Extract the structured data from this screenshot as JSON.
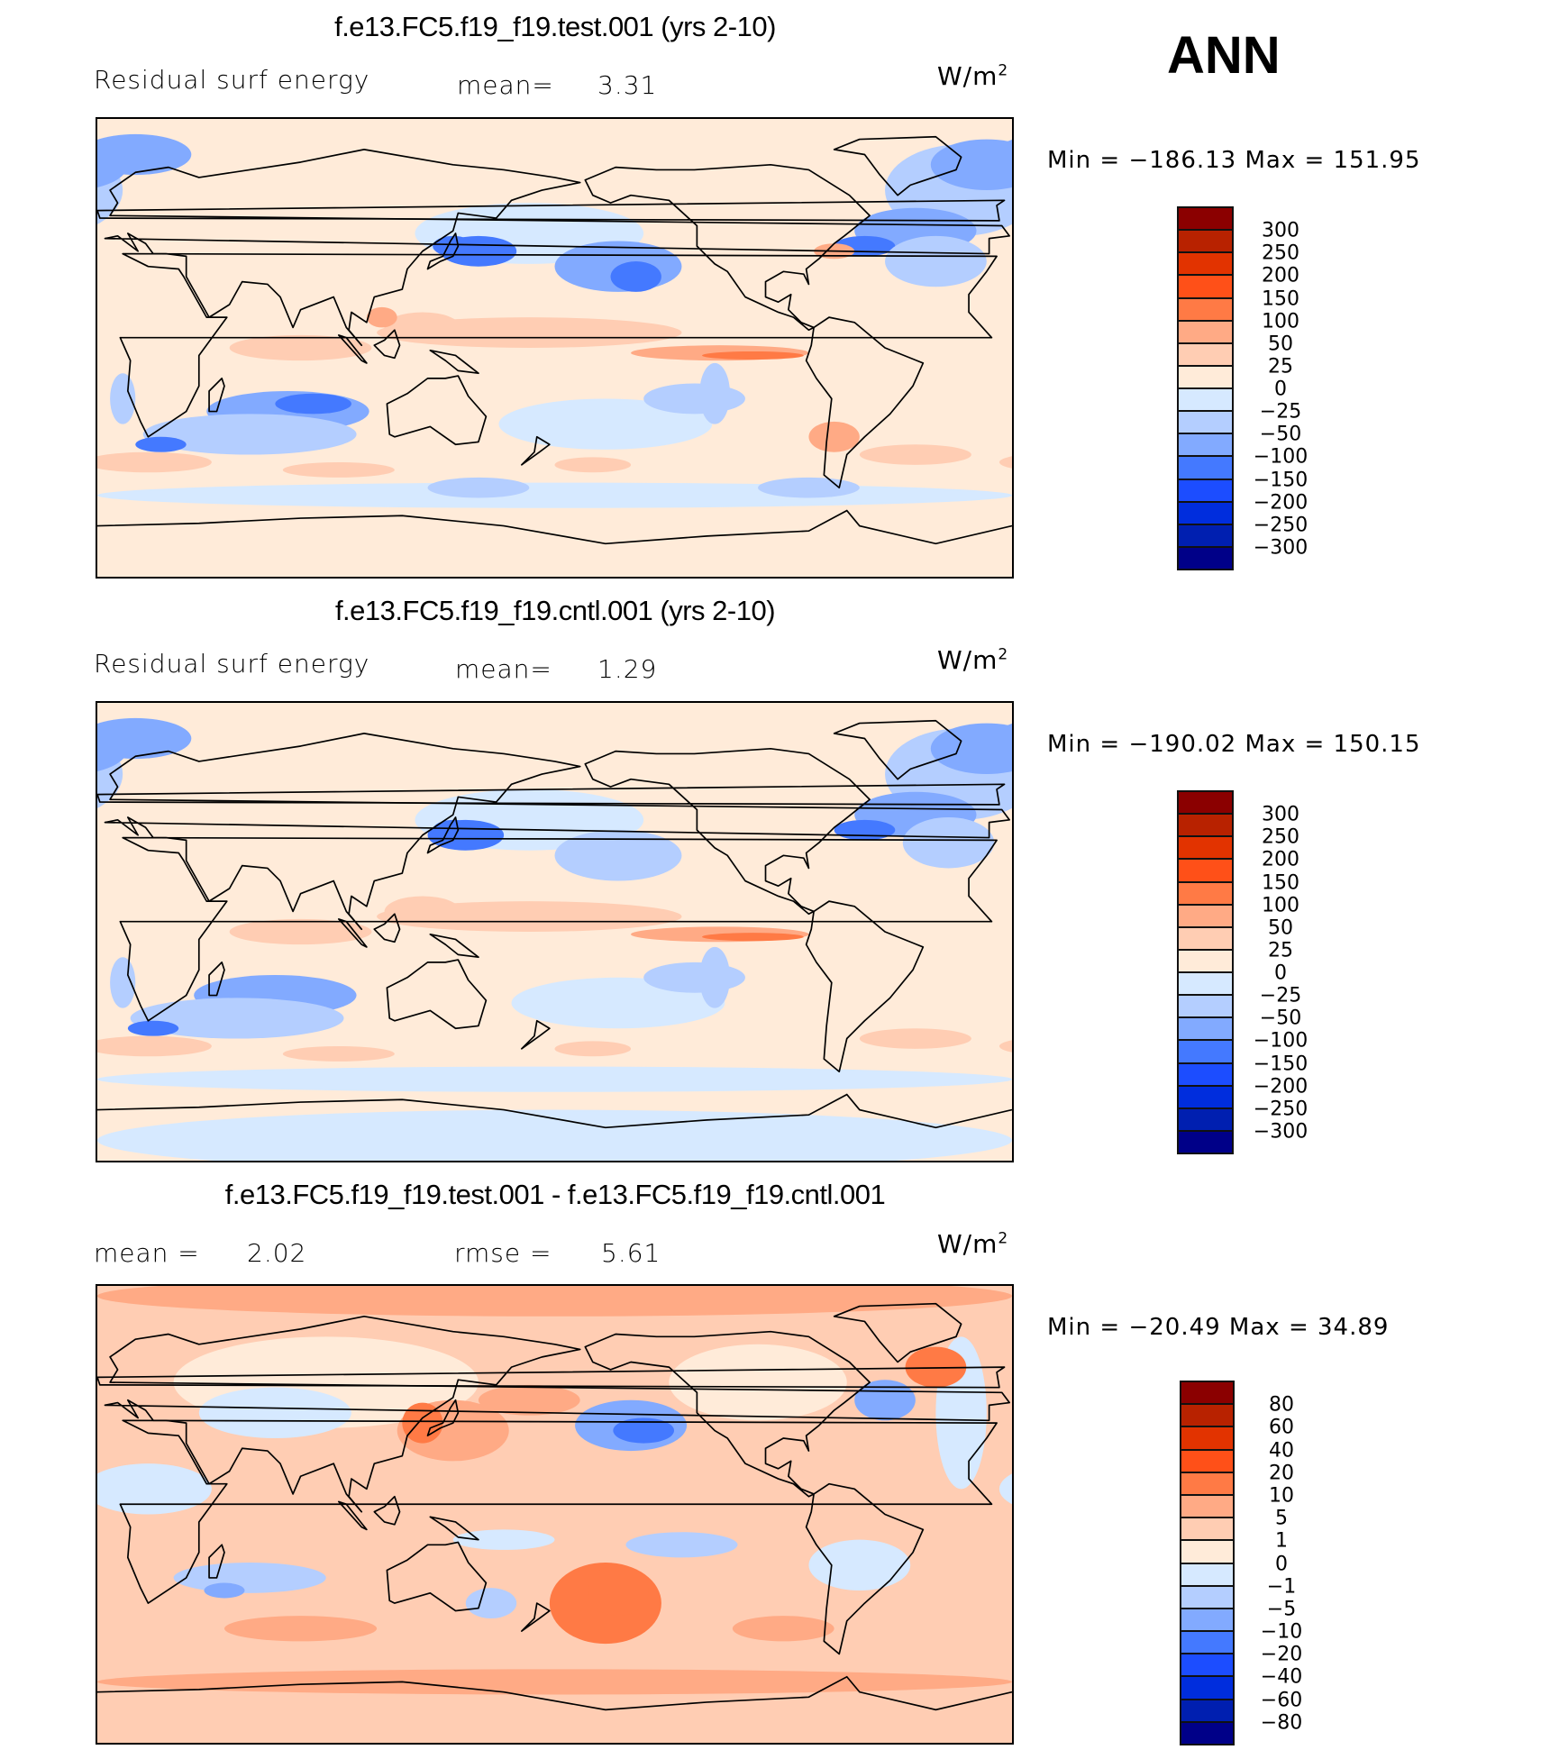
{
  "season": "ANN",
  "panels": [
    {
      "title": "f.e13.FC5.f19_f19.test.001 (yrs 2-10)",
      "variable": "Residual surf energy",
      "mean_label": "mean=",
      "mean": "3.31",
      "units": "W/m",
      "units_exp": "2",
      "minmax": "Min = −186.13 Max = 151.95"
    },
    {
      "title": "f.e13.FC5.f19_f19.cntl.001 (yrs 2-10)",
      "variable": "Residual surf energy",
      "mean_label": "mean=",
      "mean": "1.29",
      "units": "W/m",
      "units_exp": "2",
      "minmax": "Min = −190.02 Max = 150.15"
    },
    {
      "title": "f.e13.FC5.f19_f19.test.001 - f.e13.FC5.f19_f19.cntl.001",
      "mean_label": "mean =",
      "mean": "2.02",
      "rmse_label": "rmse =",
      "rmse": "5.61",
      "units": "W/m",
      "units_exp": "2",
      "minmax": "Min = −20.49 Max =  34.89"
    }
  ],
  "chart_data": {
    "type": "heatmap",
    "colorbars": [
      {
        "levels": [
          "300",
          "250",
          "200",
          "150",
          "100",
          "50",
          "25",
          "0",
          "−25",
          "−50",
          "−100",
          "−150",
          "−200",
          "−250",
          "−300"
        ]
      },
      {
        "levels": [
          "300",
          "250",
          "200",
          "150",
          "100",
          "50",
          "25",
          "0",
          "−25",
          "−50",
          "−100",
          "−150",
          "−200",
          "−250",
          "−300"
        ]
      },
      {
        "levels": [
          "80",
          "60",
          "40",
          "20",
          "10",
          "5",
          "1",
          "0",
          "−1",
          "−5",
          "−10",
          "−20",
          "−40",
          "−60",
          "−80"
        ]
      }
    ],
    "colors": [
      "#8b0000",
      "#b82200",
      "#e23300",
      "#ff5018",
      "#ff7a45",
      "#ffaa85",
      "#ffcdb3",
      "#ffebd9",
      "#d6e9ff",
      "#b4ceff",
      "#82aaff",
      "#4479ff",
      "#1c4dff",
      "#002ddd",
      "#001fb0",
      "#000088"
    ]
  }
}
